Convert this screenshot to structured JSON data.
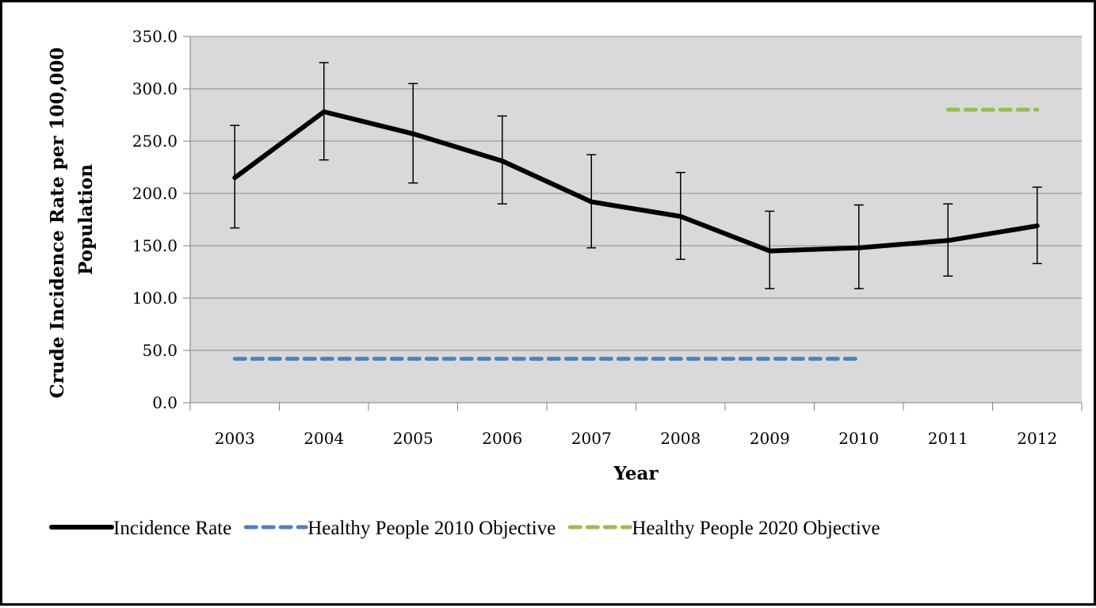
{
  "chart_data": {
    "type": "line",
    "title": "",
    "xlabel": "Year",
    "ylabel_line1": "Crude Incidence Rate per 100,000",
    "ylabel_line2": "Population",
    "categories": [
      "2003",
      "2004",
      "2005",
      "2006",
      "2007",
      "2008",
      "2009",
      "2010",
      "2011",
      "2012"
    ],
    "ylim": [
      0,
      350
    ],
    "yticks": [
      0,
      50,
      100,
      150,
      200,
      250,
      300,
      350
    ],
    "ytick_labels": [
      "0.0",
      "50.0",
      "100.0",
      "150.0",
      "200.0",
      "250.0",
      "300.0",
      "350.0"
    ],
    "grid": true,
    "legend_position": "bottom",
    "plot_background": "#d9d9d9",
    "series": [
      {
        "name": "Incidence Rate",
        "color": "#000000",
        "style": "solid",
        "values": [
          215,
          278,
          257,
          231,
          192,
          178,
          145,
          148,
          155,
          169
        ],
        "error_low": [
          167,
          232,
          210,
          190,
          148,
          137,
          109,
          109,
          121,
          133
        ],
        "error_high": [
          265,
          325,
          305,
          274,
          237,
          220,
          183,
          189,
          190,
          206
        ]
      },
      {
        "name": "Healthy People 2010 Objective",
        "color": "#4f81bd",
        "style": "dashed",
        "values": [
          42,
          42,
          42,
          42,
          42,
          42,
          42,
          42,
          null,
          null
        ]
      },
      {
        "name": "Healthy People 2020 Objective",
        "color": "#9bbb59",
        "style": "dashed",
        "values": [
          null,
          null,
          null,
          null,
          null,
          null,
          null,
          null,
          280,
          280
        ]
      }
    ]
  }
}
